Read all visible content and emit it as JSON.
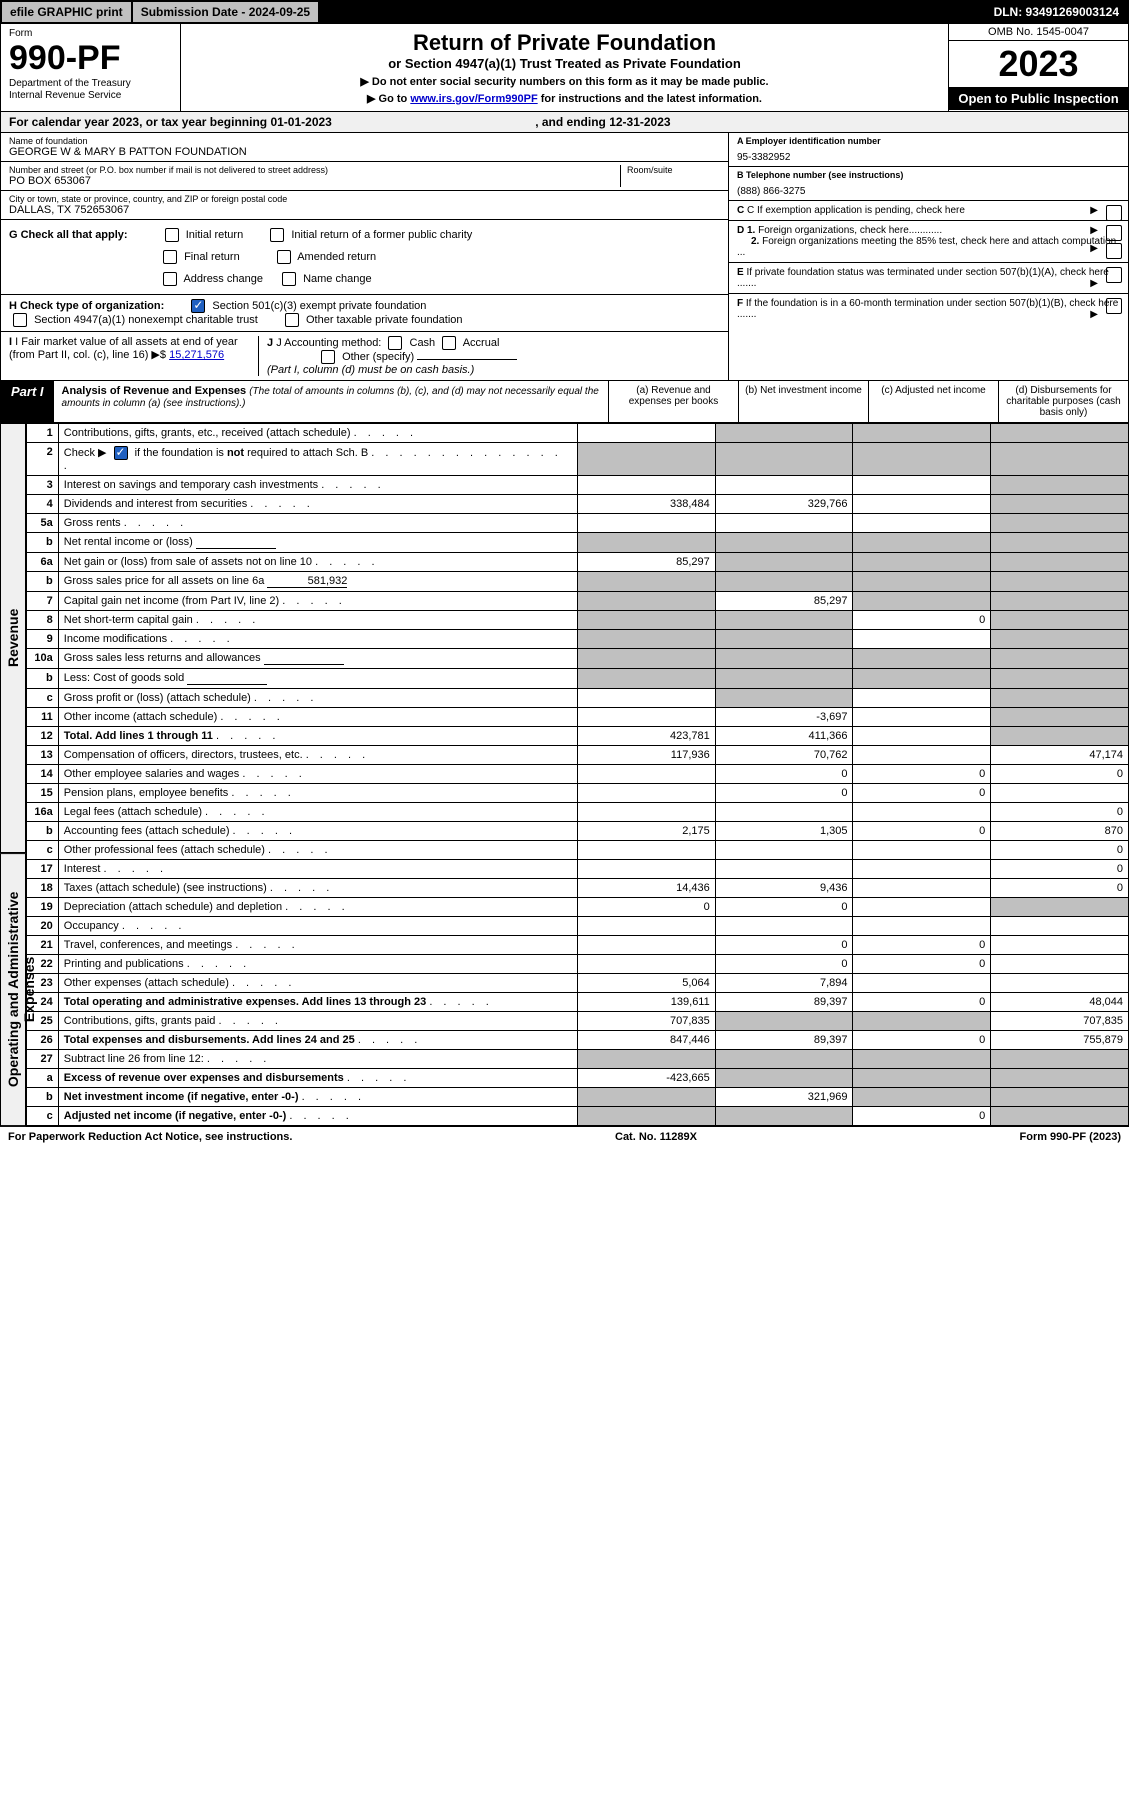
{
  "topbar": {
    "efile": "efile GRAPHIC print",
    "submission_label": "Submission Date - 2024-09-25",
    "dln_label": "DLN: 93491269003124"
  },
  "header": {
    "form_label": "Form",
    "form_number": "990-PF",
    "dept": "Department of the Treasury\nInternal Revenue Service",
    "main_title": "Return of Private Foundation",
    "sub_title": "or Section 4947(a)(1) Trust Treated as Private Foundation",
    "instr1": "▶ Do not enter social security numbers on this form as it may be made public.",
    "instr2_pre": "▶ Go to ",
    "instr2_link": "www.irs.gov/Form990PF",
    "instr2_post": " for instructions and the latest information.",
    "omb": "OMB No. 1545-0047",
    "year": "2023",
    "open": "Open to Public Inspection"
  },
  "calendar": {
    "text_pre": "For calendar year 2023, or tax year beginning ",
    "begin": "01-01-2023",
    "text_mid": " , and ending ",
    "end": "12-31-2023"
  },
  "info": {
    "name_label": "Name of foundation",
    "name_value": "GEORGE W & MARY B PATTON FOUNDATION",
    "addr_label": "Number and street (or P.O. box number if mail is not delivered to street address)",
    "addr_value": "PO BOX 653067",
    "room_label": "Room/suite",
    "city_label": "City or town, state or province, country, and ZIP or foreign postal code",
    "city_value": "DALLAS, TX  752653067",
    "ein_label": "A Employer identification number",
    "ein_value": "95-3382952",
    "phone_label": "B Telephone number (see instructions)",
    "phone_value": "(888) 866-3275",
    "c_label": "C If exemption application is pending, check here",
    "d1_label": "D 1. Foreign organizations, check here............",
    "d2_label": "2. Foreign organizations meeting the 85% test, check here and attach computation ...",
    "e_label": "E  If private foundation status was terminated under section 507(b)(1)(A), check here .......",
    "f_label": "F  If the foundation is in a 60-month termination under section 507(b)(1)(B), check here ......."
  },
  "checks": {
    "g_label": "G Check all that apply:",
    "g_opts": [
      "Initial return",
      "Initial return of a former public charity",
      "Final return",
      "Amended return",
      "Address change",
      "Name change"
    ],
    "h_label": "H Check type of organization:",
    "h_opt1": "Section 501(c)(3) exempt private foundation",
    "h_opt2": "Section 4947(a)(1) nonexempt charitable trust",
    "h_opt3": "Other taxable private foundation",
    "i_label": "I Fair market value of all assets at end of year (from Part II, col. (c), line 16)",
    "i_value": "15,271,576",
    "j_label": "J Accounting method:",
    "j_opts": [
      "Cash",
      "Accrual"
    ],
    "j_other": "Other (specify)",
    "j_note": "(Part I, column (d) must be on cash basis.)"
  },
  "part1": {
    "header": "Part I",
    "title": "Analysis of Revenue and Expenses",
    "note": "(The total of amounts in columns (b), (c), and (d) may not necessarily equal the amounts in column (a) (see instructions).)",
    "col_a": "(a)   Revenue and expenses per books",
    "col_b": "(b)   Net investment income",
    "col_c": "(c)   Adjusted net income",
    "col_d": "(d)   Disbursements for charitable purposes (cash basis only)"
  },
  "side_labels": {
    "revenue": "Revenue",
    "expenses": "Operating and Administrative Expenses"
  },
  "rows": [
    {
      "n": "1",
      "desc": "Contributions, gifts, grants, etc., received (attach schedule)",
      "a": "",
      "b": "",
      "c": "",
      "d": "",
      "shade_a": false,
      "shade_b": true,
      "shade_c": true,
      "shade_d": true
    },
    {
      "n": "2",
      "desc": "Check ▶ [✓] if the foundation is not required to attach Sch. B",
      "a": "",
      "b": "",
      "c": "",
      "d": "",
      "shade_a": true,
      "shade_b": true,
      "shade_c": true,
      "shade_d": true,
      "special": "check"
    },
    {
      "n": "3",
      "desc": "Interest on savings and temporary cash investments",
      "a": "",
      "b": "",
      "c": "",
      "d": "",
      "shade_d": true
    },
    {
      "n": "4",
      "desc": "Dividends and interest from securities",
      "a": "338,484",
      "b": "329,766",
      "c": "",
      "d": "",
      "shade_d": true
    },
    {
      "n": "5a",
      "desc": "Gross rents",
      "a": "",
      "b": "",
      "c": "",
      "d": "",
      "shade_d": true
    },
    {
      "n": "b",
      "desc": "Net rental income or (loss)",
      "a": "",
      "b": "",
      "c": "",
      "d": "",
      "shade_a": true,
      "shade_b": true,
      "shade_c": true,
      "shade_d": true,
      "inner": true
    },
    {
      "n": "6a",
      "desc": "Net gain or (loss) from sale of assets not on line 10",
      "a": "85,297",
      "b": "",
      "c": "",
      "d": "",
      "shade_b": true,
      "shade_c": true,
      "shade_d": true
    },
    {
      "n": "b",
      "desc": "Gross sales price for all assets on line 6a",
      "a": "",
      "b": "",
      "c": "",
      "d": "",
      "shade_a": true,
      "shade_b": true,
      "shade_c": true,
      "shade_d": true,
      "inner": true,
      "inner_val": "581,932"
    },
    {
      "n": "7",
      "desc": "Capital gain net income (from Part IV, line 2)",
      "a": "",
      "b": "85,297",
      "c": "",
      "d": "",
      "shade_a": true,
      "shade_c": true,
      "shade_d": true
    },
    {
      "n": "8",
      "desc": "Net short-term capital gain",
      "a": "",
      "b": "",
      "c": "0",
      "d": "",
      "shade_a": true,
      "shade_b": true,
      "shade_d": true
    },
    {
      "n": "9",
      "desc": "Income modifications",
      "a": "",
      "b": "",
      "c": "",
      "d": "",
      "shade_a": true,
      "shade_b": true,
      "shade_d": true
    },
    {
      "n": "10a",
      "desc": "Gross sales less returns and allowances",
      "a": "",
      "b": "",
      "c": "",
      "d": "",
      "shade_a": true,
      "shade_b": true,
      "shade_c": true,
      "shade_d": true,
      "inner": true
    },
    {
      "n": "b",
      "desc": "Less: Cost of goods sold",
      "a": "",
      "b": "",
      "c": "",
      "d": "",
      "shade_a": true,
      "shade_b": true,
      "shade_c": true,
      "shade_d": true,
      "inner": true
    },
    {
      "n": "c",
      "desc": "Gross profit or (loss) (attach schedule)",
      "a": "",
      "b": "",
      "c": "",
      "d": "",
      "shade_b": true,
      "shade_d": true
    },
    {
      "n": "11",
      "desc": "Other income (attach schedule)",
      "a": "",
      "b": "-3,697",
      "c": "",
      "d": "",
      "shade_d": true
    },
    {
      "n": "12",
      "desc": "Total. Add lines 1 through 11",
      "a": "423,781",
      "b": "411,366",
      "c": "",
      "d": "",
      "bold": true,
      "shade_d": true
    },
    {
      "n": "13",
      "desc": "Compensation of officers, directors, trustees, etc.",
      "a": "117,936",
      "b": "70,762",
      "c": "",
      "d": "47,174"
    },
    {
      "n": "14",
      "desc": "Other employee salaries and wages",
      "a": "",
      "b": "0",
      "c": "0",
      "d": "0"
    },
    {
      "n": "15",
      "desc": "Pension plans, employee benefits",
      "a": "",
      "b": "0",
      "c": "0",
      "d": ""
    },
    {
      "n": "16a",
      "desc": "Legal fees (attach schedule)",
      "a": "",
      "b": "",
      "c": "",
      "d": "0"
    },
    {
      "n": "b",
      "desc": "Accounting fees (attach schedule)",
      "a": "2,175",
      "b": "1,305",
      "c": "0",
      "d": "870"
    },
    {
      "n": "c",
      "desc": "Other professional fees (attach schedule)",
      "a": "",
      "b": "",
      "c": "",
      "d": "0"
    },
    {
      "n": "17",
      "desc": "Interest",
      "a": "",
      "b": "",
      "c": "",
      "d": "0"
    },
    {
      "n": "18",
      "desc": "Taxes (attach schedule) (see instructions)",
      "a": "14,436",
      "b": "9,436",
      "c": "",
      "d": "0"
    },
    {
      "n": "19",
      "desc": "Depreciation (attach schedule) and depletion",
      "a": "0",
      "b": "0",
      "c": "",
      "d": "",
      "shade_d": true
    },
    {
      "n": "20",
      "desc": "Occupancy",
      "a": "",
      "b": "",
      "c": "",
      "d": ""
    },
    {
      "n": "21",
      "desc": "Travel, conferences, and meetings",
      "a": "",
      "b": "0",
      "c": "0",
      "d": ""
    },
    {
      "n": "22",
      "desc": "Printing and publications",
      "a": "",
      "b": "0",
      "c": "0",
      "d": ""
    },
    {
      "n": "23",
      "desc": "Other expenses (attach schedule)",
      "a": "5,064",
      "b": "7,894",
      "c": "",
      "d": ""
    },
    {
      "n": "24",
      "desc": "Total operating and administrative expenses. Add lines 13 through 23",
      "a": "139,611",
      "b": "89,397",
      "c": "0",
      "d": "48,044",
      "bold": true
    },
    {
      "n": "25",
      "desc": "Contributions, gifts, grants paid",
      "a": "707,835",
      "b": "",
      "c": "",
      "d": "707,835",
      "shade_b": true,
      "shade_c": true
    },
    {
      "n": "26",
      "desc": "Total expenses and disbursements. Add lines 24 and 25",
      "a": "847,446",
      "b": "89,397",
      "c": "0",
      "d": "755,879",
      "bold": true
    },
    {
      "n": "27",
      "desc": "Subtract line 26 from line 12:",
      "a": "",
      "b": "",
      "c": "",
      "d": "",
      "shade_a": true,
      "shade_b": true,
      "shade_c": true,
      "shade_d": true
    },
    {
      "n": "a",
      "desc": "Excess of revenue over expenses and disbursements",
      "a": "-423,665",
      "b": "",
      "c": "",
      "d": "",
      "bold": true,
      "shade_b": true,
      "shade_c": true,
      "shade_d": true
    },
    {
      "n": "b",
      "desc": "Net investment income (if negative, enter -0-)",
      "a": "",
      "b": "321,969",
      "c": "",
      "d": "",
      "bold": true,
      "shade_a": true,
      "shade_c": true,
      "shade_d": true
    },
    {
      "n": "c",
      "desc": "Adjusted net income (if negative, enter -0-)",
      "a": "",
      "b": "",
      "c": "0",
      "d": "",
      "bold": true,
      "shade_a": true,
      "shade_b": true,
      "shade_d": true
    }
  ],
  "footer": {
    "left": "For Paperwork Reduction Act Notice, see instructions.",
    "mid": "Cat. No. 11289X",
    "right": "Form 990-PF (2023)"
  }
}
